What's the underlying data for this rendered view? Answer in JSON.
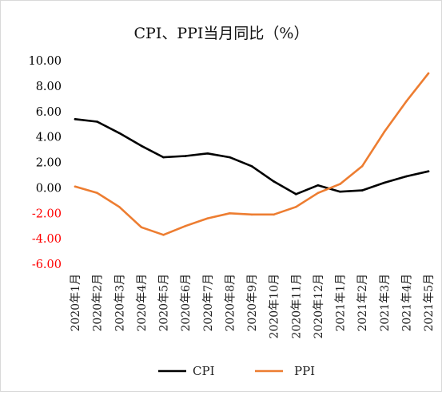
{
  "chart_data": {
    "type": "line",
    "title": "CPI、PPI当月同比（%）",
    "categories": [
      "2020年1月",
      "2020年2月",
      "2020年3月",
      "2020年4月",
      "2020年5月",
      "2020年6月",
      "2020年7月",
      "2020年8月",
      "2020年9月",
      "2020年10月",
      "2020年11月",
      "2020年12月",
      "2021年1月",
      "2021年2月",
      "2021年3月",
      "2021年4月",
      "2021年5月"
    ],
    "series": [
      {
        "name": "CPI",
        "color": "#000000",
        "values": [
          5.4,
          5.2,
          4.3,
          3.3,
          2.4,
          2.5,
          2.7,
          2.4,
          1.7,
          0.5,
          -0.5,
          0.2,
          -0.3,
          -0.2,
          0.4,
          0.9,
          1.3
        ]
      },
      {
        "name": "PPI",
        "color": "#ed7d31",
        "values": [
          0.1,
          -0.4,
          -1.5,
          -3.1,
          -3.7,
          -3.0,
          -2.4,
          -2.0,
          -2.1,
          -2.1,
          -1.5,
          -0.4,
          0.3,
          1.7,
          4.4,
          6.8,
          9.0
        ]
      }
    ],
    "yticks": [
      "10.00",
      "8.00",
      "6.00",
      "4.00",
      "2.00",
      "0.00",
      "-2.00",
      "-4.00",
      "-6.00"
    ],
    "ytick_values": [
      10,
      8,
      6,
      4,
      2,
      0,
      -2,
      -4,
      -6
    ],
    "ylim": [
      -6,
      10
    ],
    "positive_tick_color": "#000000",
    "negative_tick_color": "#ff0000",
    "grid": false,
    "legend_position": "bottom",
    "xlabel": "",
    "ylabel": ""
  }
}
